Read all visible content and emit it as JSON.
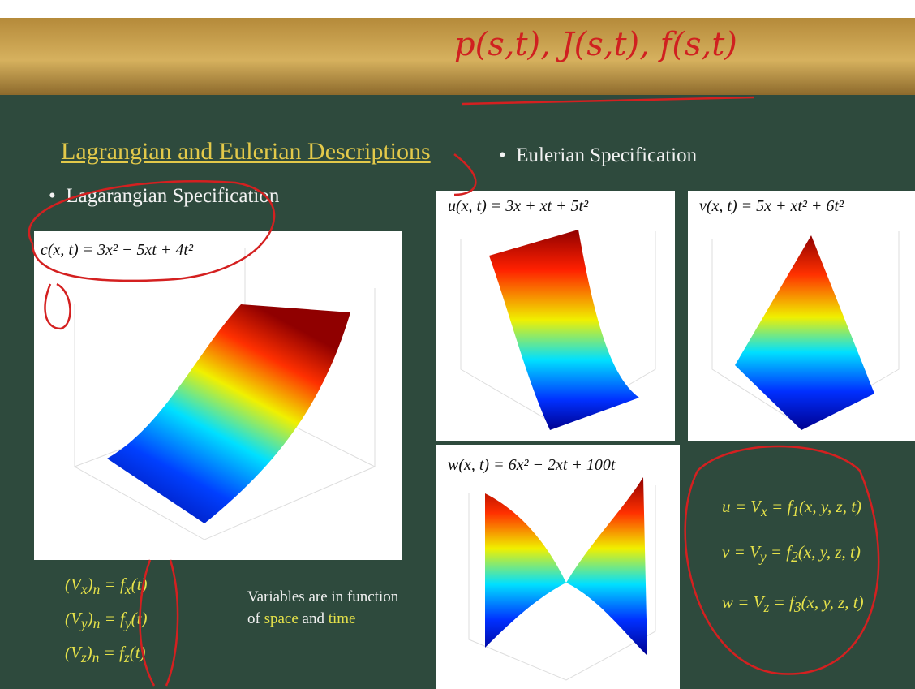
{
  "handwriting": "p(s,t), J(s,t), f(s,t)",
  "title": "Lagrangian and Eulerian Descriptions",
  "lagrangian": {
    "heading": "Lagarangian Specification",
    "plot_label": "c(x, t) = 3x² − 5xt + 4t²"
  },
  "eulerian": {
    "heading": "Eulerian Specification",
    "plots": [
      "u(x, t) = 3x + xt + 5t²",
      "v(x, t) = 5x + xt² + 6t²",
      "w(x, t) = 6x² − 2xt + 100t"
    ]
  },
  "left_equations": [
    {
      "var_sub": "x",
      "index": "n",
      "f_sub": "x"
    },
    {
      "var_sub": "y",
      "index": "n",
      "f_sub": "y"
    },
    {
      "var_sub": "z",
      "index": "n",
      "f_sub": "z"
    }
  ],
  "note": [
    "Variables are in function of",
    "space",
    "and",
    "time"
  ],
  "right_equations": [
    {
      "lhs": "u",
      "v_sub": "x",
      "f_sub": "1"
    },
    {
      "lhs": "v",
      "v_sub": "y",
      "f_sub": "2"
    },
    {
      "lhs": "w",
      "v_sub": "z",
      "f_sub": "3"
    }
  ]
}
